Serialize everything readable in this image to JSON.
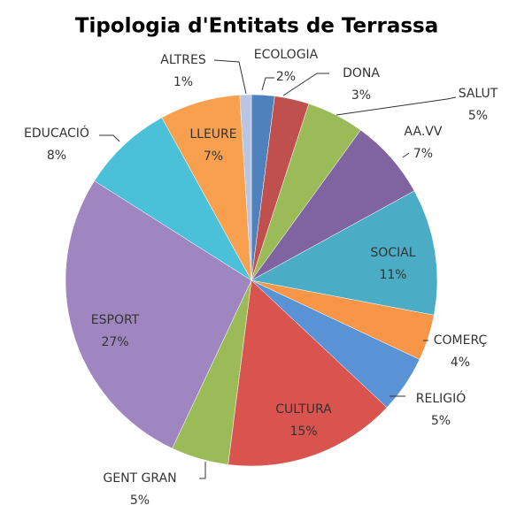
{
  "chart_data": {
    "type": "pie",
    "title": "Tipologia d'Entitats de Terrassa",
    "categories": [
      "ECOLOGIA",
      "DONA",
      "SALUT",
      "AA.VV",
      "SOCIAL",
      "COMERÇ",
      "RELIGIÓ",
      "CULTURA",
      "GENT GRAN",
      "ESPORT",
      "EDUCACIÓ",
      "LLEURE",
      "ALTRES"
    ],
    "values": [
      2,
      3,
      5,
      7,
      11,
      4,
      5,
      15,
      5,
      27,
      8,
      7,
      1
    ],
    "value_labels": [
      "2%",
      "3%",
      "5%",
      "7%",
      "11%",
      "4%",
      "5%",
      "15%",
      "5%",
      "27%",
      "8%",
      "7%",
      "1%"
    ],
    "colors": [
      "#4f81bd",
      "#c0504d",
      "#9bbb59",
      "#8064a2",
      "#4bacc6",
      "#f79646",
      "#5a92d6",
      "#d9534f",
      "#9bbb59",
      "#9f86c0",
      "#4bc0d9",
      "#f8a04e",
      "#b9c5e2"
    ]
  }
}
